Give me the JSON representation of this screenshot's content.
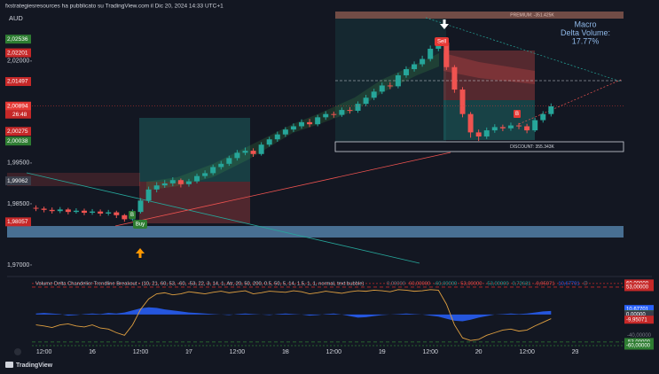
{
  "header": "fxstrategiesresources ha pubblicato su TradingView.com il Dic 20, 2024 14:33 UTC+1",
  "footer": "TradingView",
  "chart_data": [
    {
      "type": "candlestick",
      "currency": "AUD",
      "open": [
        1.984,
        1.9838,
        1.9835,
        1.9832,
        1.9836,
        1.983,
        1.9833,
        1.9828,
        1.9831,
        1.9826,
        1.9829,
        1.9822,
        1.9812,
        1.983,
        1.9858,
        1.9885,
        1.9895,
        1.99,
        1.9908,
        1.9898,
        1.9905,
        1.9918,
        1.9925,
        1.994,
        1.9948,
        1.9962,
        1.9975,
        1.998,
        1.9972,
        1.9995,
        2.0008,
        2.002,
        2.0032,
        2.004,
        2.005,
        2.0045,
        2.0062,
        2.007,
        2.0068,
        2.008,
        2.0078,
        2.0095,
        2.011,
        2.0125,
        2.014,
        2.0138,
        2.0165,
        2.018,
        2.0192,
        2.0205,
        2.023,
        2.0245,
        2.0185,
        2.013,
        2.007,
        2.0025,
        2.0015,
        2.003,
        2.0038,
        2.0035,
        2.0042,
        2.004,
        2.003,
        2.0055,
        2.007
      ],
      "high": [
        1.9846,
        1.9843,
        1.9841,
        1.9842,
        1.984,
        1.9839,
        1.9838,
        1.9837,
        1.9836,
        1.9835,
        1.9833,
        1.9825,
        1.9836,
        1.9864,
        1.9892,
        1.9903,
        1.9908,
        1.9915,
        1.9912,
        1.9911,
        1.9924,
        1.9932,
        1.9946,
        1.9955,
        1.9968,
        1.9982,
        1.9988,
        1.9986,
        2.0001,
        2.0014,
        2.0027,
        2.0038,
        2.0047,
        2.0057,
        2.0058,
        2.0068,
        2.0077,
        2.0076,
        2.0086,
        2.0087,
        2.0101,
        2.0117,
        2.0132,
        2.0147,
        2.0148,
        2.0171,
        2.0187,
        2.0199,
        2.0213,
        2.0238,
        2.0254,
        2.0249,
        2.019,
        2.0136,
        2.0075,
        2.0032,
        2.0037,
        2.0045,
        2.0044,
        2.0049,
        2.0048,
        2.0046,
        2.0061,
        2.0077,
        2.0096
      ],
      "low": [
        1.9832,
        1.9829,
        1.9826,
        1.9827,
        1.9824,
        1.9826,
        1.9822,
        1.9823,
        1.982,
        1.9821,
        1.9815,
        1.9806,
        1.9808,
        1.9826,
        1.9852,
        1.9878,
        1.9889,
        1.9893,
        1.989,
        1.9892,
        1.99,
        1.9912,
        1.992,
        1.9934,
        1.9943,
        1.9956,
        1.9969,
        1.9965,
        1.9968,
        1.999,
        2.0002,
        2.0014,
        2.0026,
        2.0034,
        2.0038,
        2.004,
        2.0056,
        2.0061,
        2.0063,
        2.0071,
        2.0073,
        2.0089,
        2.0104,
        2.0119,
        2.0131,
        2.0133,
        2.0159,
        2.0174,
        2.0186,
        2.0199,
        2.0224,
        2.0178,
        2.0122,
        2.0062,
        2.0012,
        2.0004,
        2.0009,
        2.0024,
        2.0028,
        2.0029,
        2.0033,
        2.0023,
        2.0026,
        2.0049,
        2.0064
      ],
      "close": [
        1.9838,
        1.9835,
        1.9832,
        1.9836,
        1.983,
        1.9833,
        1.9828,
        1.9831,
        1.9826,
        1.9829,
        1.9822,
        1.9812,
        1.983,
        1.9858,
        1.9885,
        1.9895,
        1.99,
        1.9908,
        1.9898,
        1.9905,
        1.9918,
        1.9925,
        1.994,
        1.9948,
        1.9962,
        1.9975,
        1.998,
        1.9972,
        1.9995,
        2.0008,
        2.002,
        2.0032,
        2.004,
        2.005,
        2.0045,
        2.0062,
        2.007,
        2.0068,
        2.008,
        2.0078,
        2.0095,
        2.011,
        2.0125,
        2.014,
        2.0138,
        2.0165,
        2.018,
        2.0192,
        2.0205,
        2.023,
        2.0245,
        2.0185,
        2.013,
        2.007,
        2.0025,
        2.0015,
        2.003,
        2.0038,
        2.0035,
        2.0042,
        2.004,
        2.003,
        2.0055,
        2.007,
        2.0089
      ],
      "up_color": "#26a69a",
      "down_color": "#ef5350",
      "ylim": [
        1.9676,
        2.0317
      ],
      "yticks": [
        {
          "value": 1.97,
          "label": "1,97000"
        },
        {
          "value": 1.985,
          "label": "1,98500"
        },
        {
          "value": 1.995,
          "label": "1,99500"
        },
        {
          "value": 2.02,
          "label": "2,02000"
        }
      ],
      "xlim": [
        -0.5,
        73
      ],
      "xticks": [
        {
          "value": 1,
          "label": "12:00"
        },
        {
          "value": 7,
          "label": "16"
        },
        {
          "value": 13,
          "label": "12:00"
        },
        {
          "value": 19,
          "label": "17"
        },
        {
          "value": 25,
          "label": "12:00"
        },
        {
          "value": 31,
          "label": "18"
        },
        {
          "value": 37,
          "label": "12:00"
        },
        {
          "value": 43,
          "label": "19"
        },
        {
          "value": 49,
          "label": "12:00"
        },
        {
          "value": 55,
          "label": "20"
        },
        {
          "value": 61,
          "label": "12:00"
        },
        {
          "value": 67,
          "label": "23"
        }
      ],
      "price_labels": [
        {
          "value": 2.02536,
          "label": "2,02536",
          "color": "#2e7d32"
        },
        {
          "value": 2.02201,
          "label": "2,02201",
          "color": "#c62828"
        },
        {
          "value": 2.01497,
          "label": "2,01497",
          "color": "#c62828"
        },
        {
          "value": 2.00894,
          "label": "2,00894",
          "color": "#e53935"
        },
        {
          "value": 2.00275,
          "label": "2,00275",
          "color": "#c62828"
        },
        {
          "value": 2.00038,
          "label": "2,00038",
          "color": "#2e7d32"
        },
        {
          "value": 1.99062,
          "label": "1,99062",
          "color": "#3a3e4a"
        },
        {
          "value": 1.98057,
          "label": "1,98057",
          "color": "#c62828"
        }
      ],
      "countdown": "26:48",
      "annotations": {
        "premium": "PREMIUM: -351.425K",
        "discount": "DISCOUNT: 355.343K",
        "sell": "Sell",
        "buy": "Buy",
        "buy_marker": "B",
        "sell_marker": "B",
        "macro": [
          "Macro",
          "Delta Volume:",
          "17.77%"
        ],
        "macro_color": "#8fb8e8"
      }
    },
    {
      "type": "oscillator",
      "title": "Volume Delta Chandelier Trendline Breakout • (10, 21, 60, 53, -60, -53, 22, 3, 14, 1, Atr, 20, 50, 200, 0.5, 50, 5, 14, 1.5, 1, 1, normal, text bubble)",
      "legend_values": [
        {
          "label": "0,00000",
          "color": "#787b86"
        },
        {
          "label": "60,00000",
          "color": "#ef5350"
        },
        {
          "label": "-60,00000",
          "color": "#26a69a"
        },
        {
          "label": "53,00000",
          "color": "#ef5350"
        },
        {
          "label": "-53,00000",
          "color": "#26a69a"
        },
        {
          "label": "0,72631",
          "color": "#26a69a"
        },
        {
          "label": "-9,95071",
          "color": "#ef5350"
        },
        {
          "label": "10,67701",
          "color": "#2962ff"
        },
        {
          "label": "∅",
          "color": "#787b86"
        }
      ],
      "ylim": [
        -72,
        70
      ],
      "yticks": [
        {
          "value": -40,
          "label": "-40,00000"
        }
      ],
      "series": [
        {
          "kind": "area",
          "color": "#2962ff",
          "values": [
            2,
            3,
            2,
            1,
            -2,
            -1,
            1,
            2,
            1,
            3,
            2,
            4,
            8,
            12,
            14,
            13,
            10,
            8,
            6,
            4,
            3,
            2,
            1,
            0,
            -1,
            1,
            2,
            1,
            0,
            -1,
            1,
            2,
            1,
            0,
            -2,
            -1,
            1,
            2,
            0,
            -3,
            -6,
            -5,
            -3,
            -1,
            0,
            1,
            2,
            1,
            0,
            -2,
            -4,
            -8,
            -12,
            -13,
            -10,
            -6,
            -3,
            0,
            1,
            2,
            1,
            2,
            4,
            6,
            7
          ]
        },
        {
          "kind": "line",
          "color": "#e0a040",
          "values": [
            -20,
            -22,
            -25,
            -20,
            -18,
            -22,
            -24,
            -20,
            -26,
            -28,
            -35,
            -40,
            -20,
            10,
            30,
            40,
            42,
            38,
            40,
            44,
            42,
            40,
            43,
            45,
            42,
            44,
            46,
            40,
            42,
            45,
            44,
            43,
            46,
            44,
            40,
            42,
            45,
            43,
            41,
            44,
            46,
            45,
            47,
            46,
            44,
            48,
            47,
            45,
            46,
            48,
            47,
            20,
            -20,
            -45,
            -50,
            -48,
            -40,
            -35,
            -30,
            -28,
            -32,
            -30,
            -22,
            -15,
            -8
          ]
        }
      ],
      "price_labels": [
        {
          "value": 60,
          "label": "60,00000",
          "color": "#c62828",
          "line": "2 2"
        },
        {
          "value": 53,
          "label": "53,00000",
          "color": "#c62828",
          "line": "4 3"
        },
        {
          "value": 10.67701,
          "label": "10,67701",
          "color": "#2962ff"
        },
        {
          "value": 0.72631,
          "label": "0,72631",
          "color": "#2e7d32"
        },
        {
          "value": 0,
          "label": "0,00000",
          "color": "#3a3e4a"
        },
        {
          "value": -9.95071,
          "label": "-9,95071",
          "color": "#c62828"
        },
        {
          "value": -53,
          "label": "-53,00000",
          "color": "#2e7d32",
          "line": "4 3"
        },
        {
          "value": -60,
          "label": "-60,00000",
          "color": "#2e7d32",
          "line": "2 2"
        }
      ]
    }
  ]
}
